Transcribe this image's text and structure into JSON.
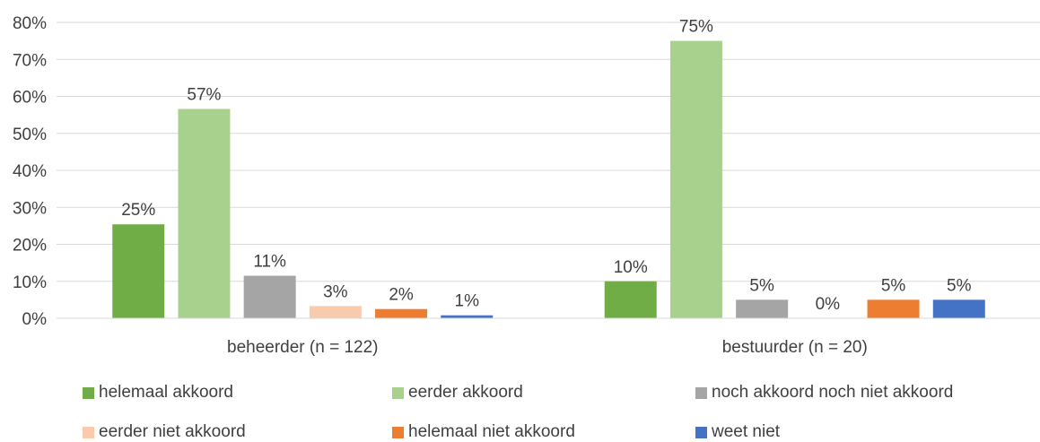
{
  "chart_data": {
    "type": "bar",
    "categories": [
      "beheerder (n = 122)",
      "bestuurder (n = 20)"
    ],
    "series": [
      {
        "name": "helemaal akkoord",
        "color": "#70AD47",
        "values": [
          25.4,
          10
        ],
        "labels": [
          "25%",
          "10%"
        ]
      },
      {
        "name": "eerder akkoord",
        "color": "#A9D18E",
        "values": [
          56.6,
          75
        ],
        "labels": [
          "57%",
          "75%"
        ]
      },
      {
        "name": "noch akkoord noch niet akkoord",
        "color": "#A5A5A5",
        "values": [
          11.5,
          5
        ],
        "labels": [
          "11%",
          "5%"
        ]
      },
      {
        "name": "eerder niet akkoord",
        "color": "#F8CBAD",
        "values": [
          3.3,
          0
        ],
        "labels": [
          "3%",
          "0%"
        ]
      },
      {
        "name": "helemaal niet akkoord",
        "color": "#ED7D31",
        "values": [
          2.5,
          5
        ],
        "labels": [
          "2%",
          "5%"
        ]
      },
      {
        "name": "weet niet",
        "color": "#4472C4",
        "values": [
          0.8,
          5
        ],
        "labels": [
          "1%",
          "5%"
        ]
      }
    ],
    "yticks": [
      "0%",
      "10%",
      "20%",
      "30%",
      "40%",
      "50%",
      "60%",
      "70%",
      "80%"
    ],
    "ylim": [
      0,
      80
    ],
    "grid": true,
    "legend_position": "bottom"
  }
}
